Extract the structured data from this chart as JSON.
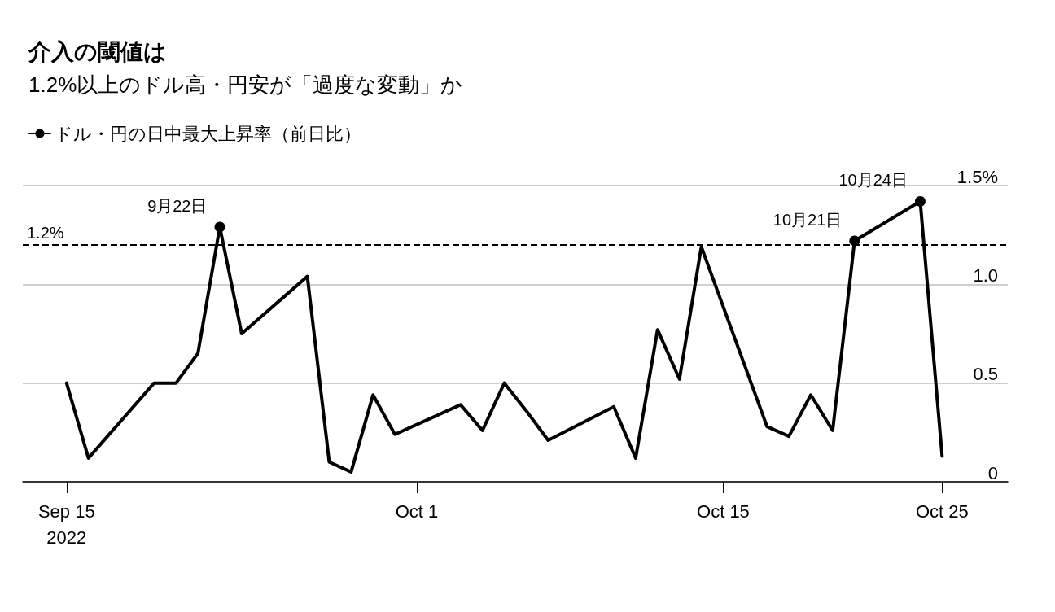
{
  "chart_data": {
    "type": "line",
    "title": "介入の閾値は",
    "subtitle": "1.2%以上のドル高・円安が「過度な変動」か",
    "series": [
      {
        "name": "ドル・円の日中最大上昇率（前日比）",
        "color": "#000000",
        "x": [
          "2022-09-15",
          "2022-09-16",
          "2022-09-19",
          "2022-09-20",
          "2022-09-21",
          "2022-09-22",
          "2022-09-23",
          "2022-09-26",
          "2022-09-27",
          "2022-09-28",
          "2022-09-29",
          "2022-09-30",
          "2022-10-03",
          "2022-10-04",
          "2022-10-05",
          "2022-10-06",
          "2022-10-07",
          "2022-10-10",
          "2022-10-11",
          "2022-10-12",
          "2022-10-13",
          "2022-10-14",
          "2022-10-17",
          "2022-10-18",
          "2022-10-19",
          "2022-10-20",
          "2022-10-21",
          "2022-10-24",
          "2022-10-25"
        ],
        "values": [
          0.5,
          0.12,
          0.5,
          0.5,
          0.65,
          1.29,
          0.75,
          1.04,
          0.1,
          0.05,
          0.44,
          0.24,
          0.39,
          0.26,
          0.5,
          0.36,
          0.21,
          0.38,
          0.12,
          0.77,
          0.52,
          1.19,
          0.28,
          0.23,
          0.44,
          0.26,
          1.22,
          1.42,
          0.13
        ]
      }
    ],
    "xlim": [
      "2022-09-13",
      "2022-10-28"
    ],
    "xticks": [
      {
        "value": "2022-09-15",
        "label": "Sep 15\n2022"
      },
      {
        "value": "2022-10-01",
        "label": "Oct 1"
      },
      {
        "value": "2022-10-15",
        "label": "Oct 15"
      },
      {
        "value": "2022-10-25",
        "label": "Oct 25"
      }
    ],
    "ylim": [
      0,
      1.5
    ],
    "yticks": [
      {
        "value": 0,
        "label": "0"
      },
      {
        "value": 0.5,
        "label": "0.5"
      },
      {
        "value": 1,
        "label": "1.0"
      },
      {
        "value": 1.5,
        "label": "1.5%"
      }
    ],
    "ref_lines": [
      {
        "axis": "y",
        "value": 1.2,
        "label": "1.2%",
        "line_style": "dashed",
        "color": "#000000"
      }
    ],
    "annotations": [
      {
        "text": "9月22日",
        "x": "2022-09-22",
        "y": 1.29
      },
      {
        "text": "10月21日",
        "x": "2022-10-21",
        "y": 1.22
      },
      {
        "text": "10月24日",
        "x": "2022-10-24",
        "y": 1.42
      }
    ],
    "grid": "y",
    "legend": "top left",
    "marker": "none",
    "line_style": "solid"
  }
}
